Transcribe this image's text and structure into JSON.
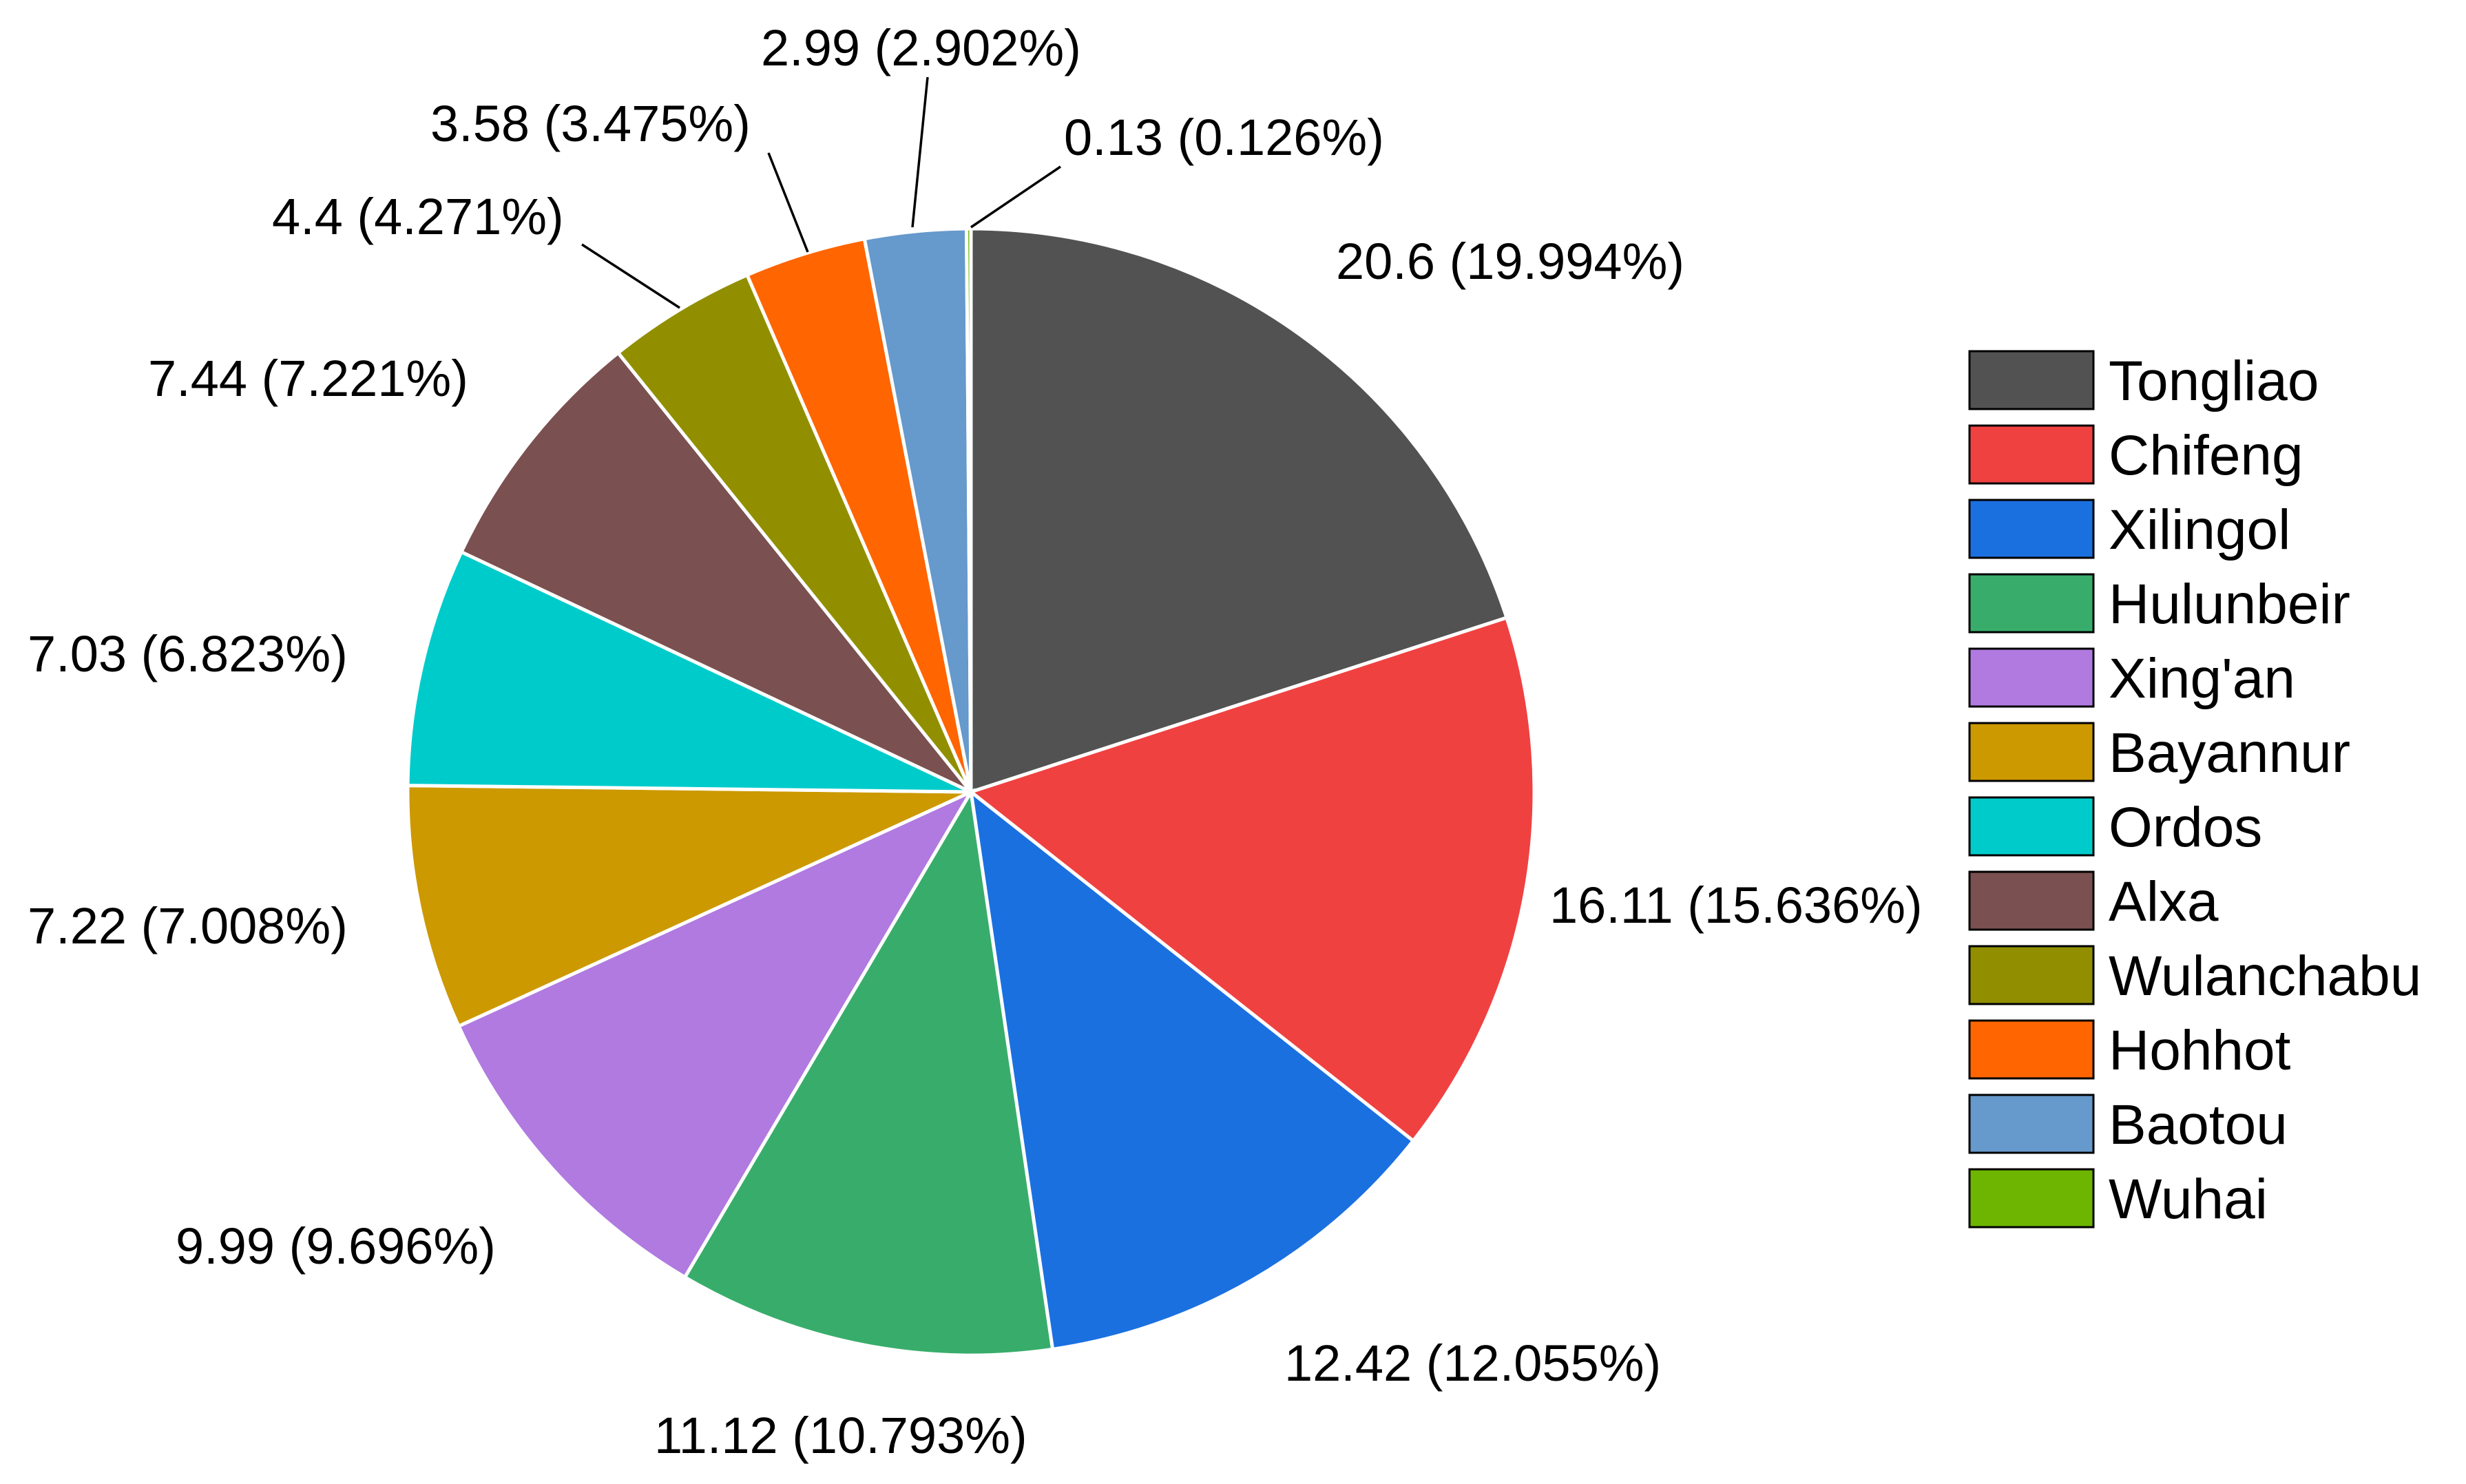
{
  "chart_data": {
    "type": "pie",
    "title": "",
    "start_angle_deg": 0,
    "direction": "clockwise",
    "legend_position": "right",
    "slices": [
      {
        "name": "Tongliao",
        "value": 20.6,
        "percent": "19.994%",
        "label": "20.6 (19.994%)",
        "color": "#525252"
      },
      {
        "name": "Chifeng",
        "value": 16.11,
        "percent": "15.636%",
        "label": "16.11 (15.636%)",
        "color": "#f04141"
      },
      {
        "name": "Xilingol",
        "value": 12.42,
        "percent": "12.055%",
        "label": "12.42 (12.055%)",
        "color": "#1b70e0"
      },
      {
        "name": "Hulunbeir",
        "value": 11.12,
        "percent": "10.793%",
        "label": "11.12 (10.793%)",
        "color": "#38ad6b"
      },
      {
        "name": "Xing'an",
        "value": 9.99,
        "percent": "9.696%",
        "label": "9.99 (9.696%)",
        "color": "#b07ae0"
      },
      {
        "name": "Bayannur",
        "value": 7.22,
        "percent": "7.008%",
        "label": "7.22 (7.008%)",
        "color": "#cc9900"
      },
      {
        "name": "Ordos",
        "value": 7.03,
        "percent": "6.823%",
        "label": "7.03 (6.823%)",
        "color": "#00cbcb"
      },
      {
        "name": "Alxa",
        "value": 7.44,
        "percent": "7.221%",
        "label": "7.44 (7.221%)",
        "color": "#7b5050"
      },
      {
        "name": "Wulanchabu",
        "value": 4.4,
        "percent": "4.271%",
        "label": "4.4 (4.271%)",
        "color": "#918f00"
      },
      {
        "name": "Hohhot",
        "value": 3.58,
        "percent": "3.475%",
        "label": "3.58 (3.475%)",
        "color": "#ff6500"
      },
      {
        "name": "Baotou",
        "value": 2.99,
        "percent": "2.902%",
        "label": "2.99 (2.902%)",
        "color": "#6699cc"
      },
      {
        "name": "Wuhai",
        "value": 0.13,
        "percent": "0.126%",
        "label": "0.13 (0.126%)",
        "color": "#6db500"
      }
    ]
  }
}
